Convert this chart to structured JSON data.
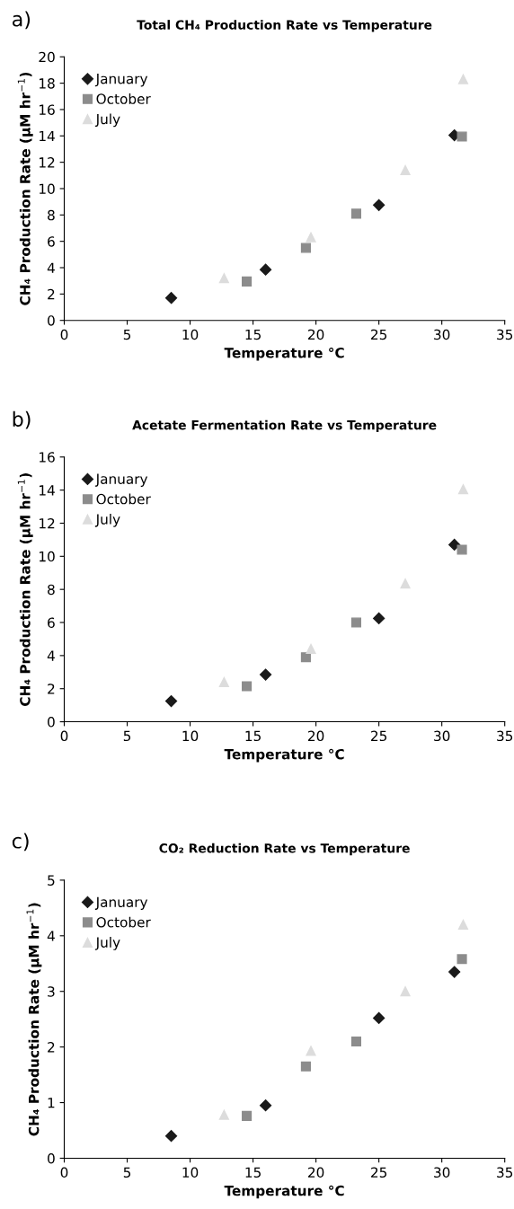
{
  "chart_data": [
    {
      "type": "scatter",
      "title": "Total CH₄ Production Rate vs Temperature",
      "xlabel": "Temperature °C",
      "ylabel": "CH₄ Production Rate (μM hr$^{−1}$)",
      "annotations": [
        "a)"
      ],
      "xlim": [
        0,
        35
      ],
      "xticks": [
        0,
        5,
        10,
        15,
        20,
        25,
        30,
        35
      ],
      "ylim": [
        0,
        20
      ],
      "yticks": [
        0,
        2,
        4,
        6,
        8,
        10,
        12,
        14,
        16,
        18,
        20
      ],
      "grid": false,
      "legend": "top left",
      "series": [
        {
          "name": "January",
          "color": "#1a1a1a",
          "marker": "diamond",
          "x": [
            8.5,
            16,
            25,
            31
          ],
          "values": [
            1.7,
            3.85,
            8.75,
            14.05
          ]
        },
        {
          "name": "October",
          "color": "#8c8c8c",
          "marker": "square",
          "x": [
            14.5,
            19.2,
            23.2,
            31.6
          ],
          "values": [
            2.95,
            5.5,
            8.1,
            13.95
          ]
        },
        {
          "name": "July",
          "color": "#dcdcdc",
          "marker": "triangle",
          "x": [
            12.7,
            19.6,
            27.1,
            31.7
          ],
          "values": [
            3.2,
            6.3,
            11.4,
            18.3
          ]
        }
      ]
    },
    {
      "type": "scatter",
      "title": "Acetate Fermentation Rate vs Temperature",
      "xlabel": "Temperature °C",
      "ylabel": "CH₄ Production Rate (μM hr$^{−1}$)",
      "annotations": [
        "b)"
      ],
      "xlim": [
        0,
        35
      ],
      "xticks": [
        0,
        5,
        10,
        15,
        20,
        25,
        30,
        35
      ],
      "ylim": [
        0,
        16
      ],
      "yticks": [
        0,
        2,
        4,
        6,
        8,
        10,
        12,
        14,
        16
      ],
      "grid": false,
      "legend": "top left",
      "series": [
        {
          "name": "January",
          "color": "#1a1a1a",
          "marker": "diamond",
          "x": [
            8.5,
            16,
            25,
            31
          ],
          "values": [
            1.25,
            2.85,
            6.25,
            10.7
          ]
        },
        {
          "name": "October",
          "color": "#8c8c8c",
          "marker": "square",
          "x": [
            14.5,
            19.2,
            23.2,
            31.6
          ],
          "values": [
            2.15,
            3.9,
            6.0,
            10.4
          ]
        },
        {
          "name": "July",
          "color": "#dcdcdc",
          "marker": "triangle",
          "x": [
            12.7,
            19.6,
            27.1,
            31.7
          ],
          "values": [
            2.4,
            4.4,
            8.35,
            14.05
          ]
        }
      ]
    },
    {
      "type": "scatter",
      "title": "CO₂ Reduction Rate vs Temperature",
      "xlabel": "Temperature °C",
      "ylabel": "CH₄ Production Rate (μM hr$^{−1}$)",
      "annotations": [
        "c)"
      ],
      "xlim": [
        0,
        35
      ],
      "xticks": [
        0,
        5,
        10,
        15,
        20,
        25,
        30,
        35
      ],
      "ylim": [
        0,
        5
      ],
      "yticks": [
        0,
        1,
        2,
        3,
        4,
        5
      ],
      "grid": false,
      "legend": "top left",
      "series": [
        {
          "name": "January",
          "color": "#1a1a1a",
          "marker": "diamond",
          "x": [
            8.5,
            16,
            25,
            31
          ],
          "values": [
            0.4,
            0.95,
            2.52,
            3.35
          ]
        },
        {
          "name": "October",
          "color": "#8c8c8c",
          "marker": "square",
          "x": [
            14.5,
            19.2,
            23.2,
            31.6
          ],
          "values": [
            0.76,
            1.65,
            2.1,
            3.58
          ]
        },
        {
          "name": "July",
          "color": "#dcdcdc",
          "marker": "triangle",
          "x": [
            12.7,
            19.6,
            27.1,
            31.7
          ],
          "values": [
            0.78,
            1.93,
            3.0,
            4.2
          ]
        }
      ]
    }
  ]
}
